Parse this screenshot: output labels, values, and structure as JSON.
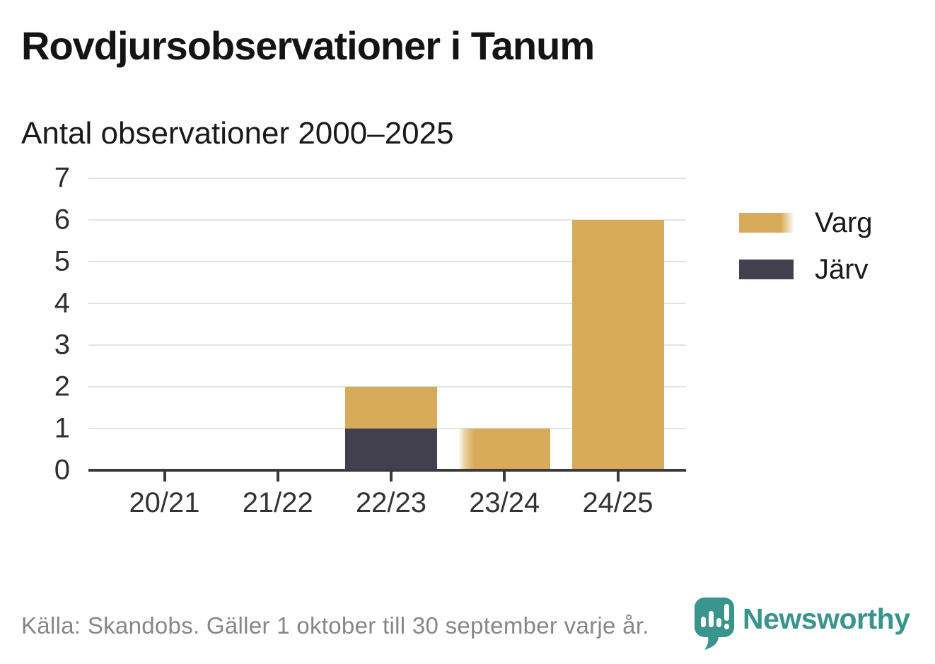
{
  "title": "Rovdjursobservationer i Tanum",
  "subtitle": "Antal observationer 2000–2025",
  "source": "Källa: Skandobs. Gäller 1 oktober till 30 september varje år.",
  "brand": {
    "name": "Newsworthy",
    "color": "#38948D",
    "icon": "newsworthy-speech-bubble-chart-icon"
  },
  "colors": {
    "varg": "#D8AB5B",
    "jarv": "#42404E",
    "axis_line": "#3B3B3B",
    "gridline": "#E3E3E3",
    "title_text": "#141414",
    "tick_text": "#333333",
    "source_text": "#878787",
    "background": "#FFFFFF"
  },
  "chart_data": {
    "type": "bar",
    "stacked": true,
    "title": "Rovdjursobservationer i Tanum",
    "subtitle": "Antal observationer 2000–2025",
    "categories": [
      "20/21",
      "21/22",
      "22/23",
      "23/24",
      "24/25"
    ],
    "series": [
      {
        "name": "Varg",
        "color": "#D8AB5B",
        "values": [
          0,
          0,
          1,
          1,
          6
        ]
      },
      {
        "name": "Järv",
        "color": "#42404E",
        "values": [
          0,
          0,
          1,
          0,
          0
        ]
      }
    ],
    "stack_order_bottom_to_top": [
      "Järv",
      "Varg"
    ],
    "totals": [
      0,
      0,
      2,
      1,
      6
    ],
    "xlabel": "",
    "ylabel": "",
    "ylim": [
      0,
      7
    ],
    "yticks": [
      0,
      1,
      2,
      3,
      4,
      5,
      6,
      7
    ],
    "grid": "horizontal",
    "legend_position": "right-top"
  }
}
